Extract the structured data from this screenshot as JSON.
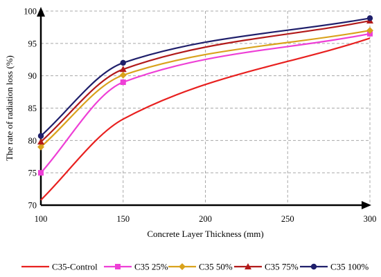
{
  "chart_data": {
    "type": "line",
    "title": "",
    "xlabel": "Concrete Layer Thickness (mm)",
    "ylabel": "The rate of radiation loss (%)",
    "xlim": [
      100,
      300
    ],
    "ylim": [
      70,
      100
    ],
    "x_ticks": [
      100,
      150,
      200,
      250,
      300
    ],
    "y_ticks": [
      70,
      75,
      80,
      85,
      90,
      95,
      100
    ],
    "grid": true,
    "legend_position": "bottom",
    "x": [
      100,
      150,
      300
    ],
    "series": [
      {
        "name": "C35-Control",
        "values": [
          70.8,
          83.3,
          95.8
        ],
        "color": "#e8201f",
        "marker": "none",
        "show_markers": false
      },
      {
        "name": "C35 25%",
        "values": [
          75.0,
          89.0,
          96.5
        ],
        "color": "#ee3fd6",
        "marker": "square",
        "show_markers": true
      },
      {
        "name": "C35 50%",
        "values": [
          79.0,
          90.1,
          97.0
        ],
        "color": "#d9a21c",
        "marker": "diamond",
        "show_markers": true
      },
      {
        "name": "C35 75%",
        "values": [
          79.8,
          91.0,
          98.5
        ],
        "color": "#b21a1a",
        "marker": "triangle",
        "show_markers": true
      },
      {
        "name": "C35 100%",
        "values": [
          80.7,
          92.0,
          98.9
        ],
        "color": "#1f1f6b",
        "marker": "circle",
        "show_markers": true
      }
    ]
  }
}
